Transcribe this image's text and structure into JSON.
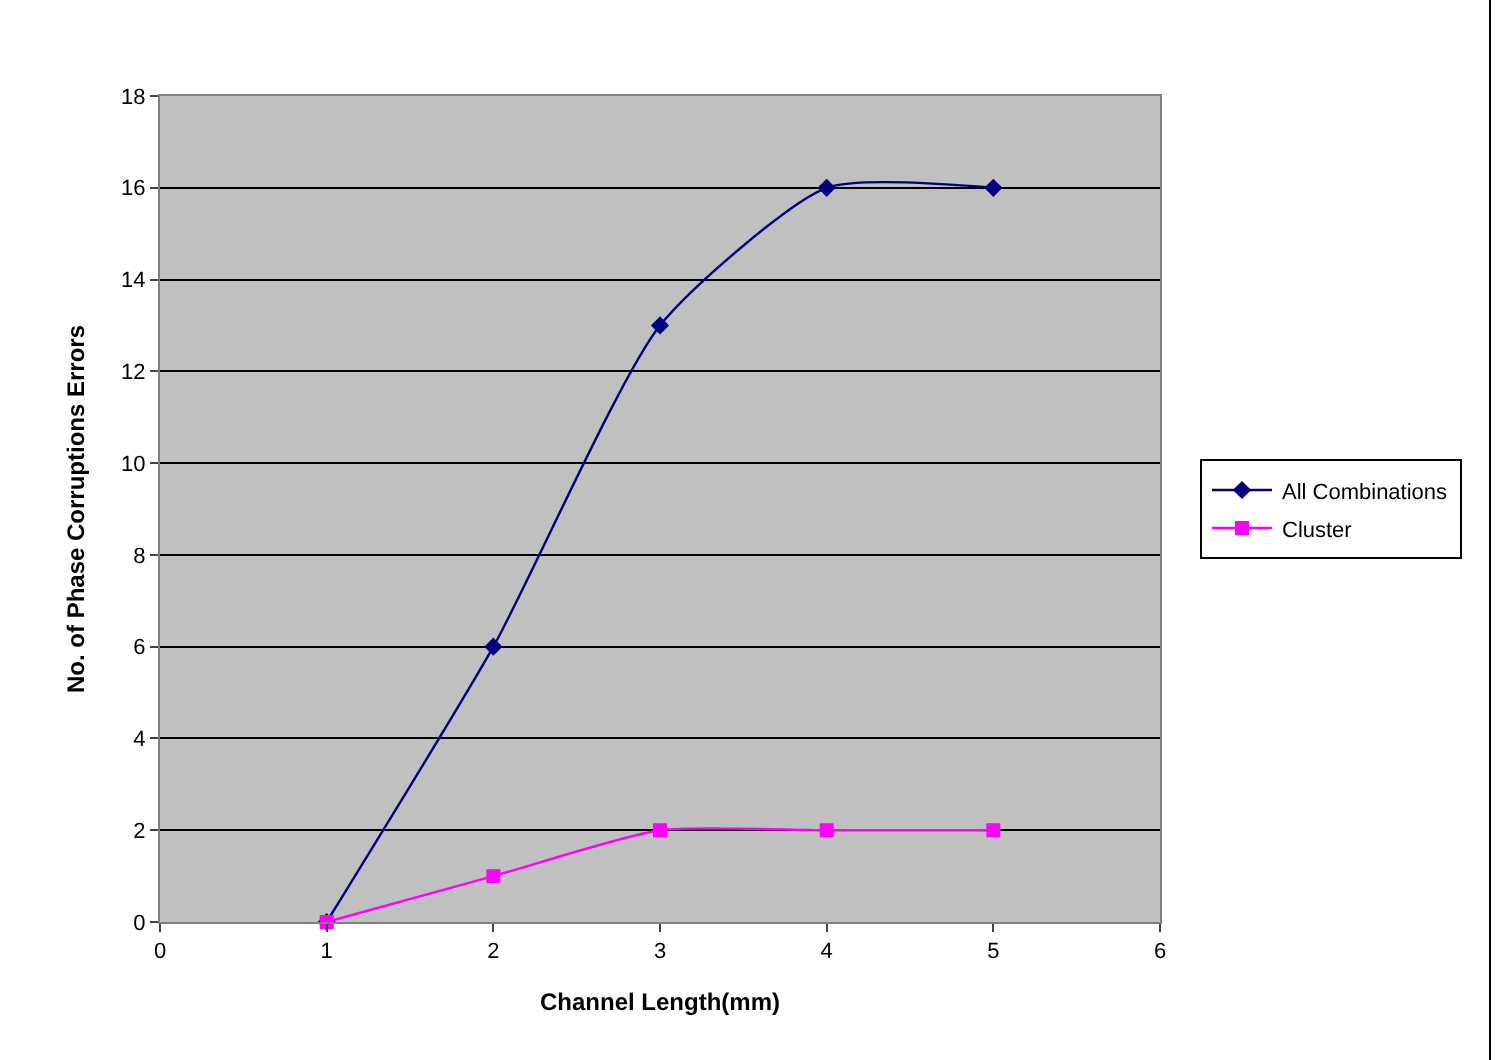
{
  "chart_data": {
    "type": "line",
    "xlabel": "Channel Length(mm)",
    "ylabel": "No. of Phase Corruptions Errors",
    "x": [
      1,
      2,
      3,
      4,
      5
    ],
    "series": [
      {
        "name": "All Combinations",
        "color": "#000080",
        "marker": "diamond",
        "values": [
          0,
          6,
          13,
          16,
          16
        ]
      },
      {
        "name": "Cluster",
        "color": "#ff00ff",
        "marker": "square",
        "values": [
          0,
          1,
          2,
          2,
          2
        ]
      }
    ],
    "xlim": [
      0,
      6
    ],
    "xticks": [
      0,
      1,
      2,
      3,
      4,
      5,
      6
    ],
    "ylim": [
      0,
      18
    ],
    "yticks": [
      0,
      2,
      4,
      6,
      8,
      10,
      12,
      14,
      16,
      18
    ],
    "grid": "y",
    "legend": "right",
    "line_style": "solid"
  }
}
